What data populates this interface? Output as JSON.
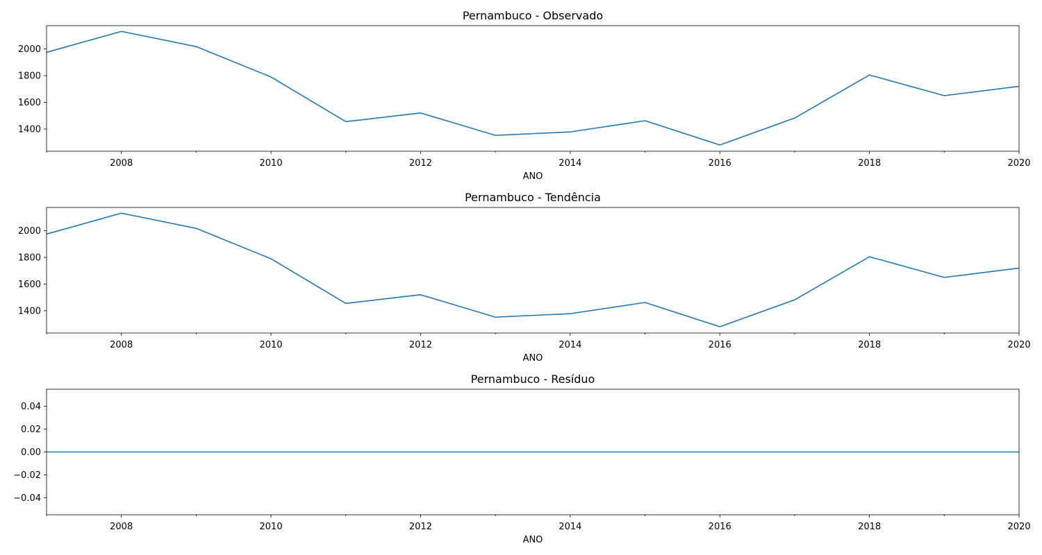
{
  "chart_data": [
    {
      "type": "line",
      "title": "Pernambuco - Observado",
      "xlabel": "ANO",
      "ylabel": "",
      "x": [
        2007,
        2008,
        2009,
        2010,
        2011,
        2012,
        2013,
        2014,
        2015,
        2016,
        2017,
        2018,
        2019,
        2020
      ],
      "series": [
        {
          "values": [
            1975,
            2132,
            2018,
            1790,
            1455,
            1520,
            1352,
            1378,
            1462,
            1280,
            1482,
            1805,
            1650,
            1720
          ]
        }
      ],
      "xlim": [
        2007,
        2020
      ],
      "ylim": [
        1233,
        2175
      ],
      "xticks": [
        "2008",
        "2010",
        "2012",
        "2014",
        "2016",
        "2018",
        "2020"
      ],
      "yticks": [
        "1400",
        "1600",
        "1800",
        "2000"
      ],
      "grid": false,
      "line_color": "#1f77b4"
    },
    {
      "type": "line",
      "title": "Pernambuco - Tendência",
      "xlabel": "ANO",
      "ylabel": "",
      "x": [
        2007,
        2008,
        2009,
        2010,
        2011,
        2012,
        2013,
        2014,
        2015,
        2016,
        2017,
        2018,
        2019,
        2020
      ],
      "series": [
        {
          "values": [
            1975,
            2132,
            2018,
            1790,
            1455,
            1520,
            1352,
            1378,
            1462,
            1280,
            1482,
            1805,
            1650,
            1720
          ]
        }
      ],
      "xlim": [
        2007,
        2020
      ],
      "ylim": [
        1233,
        2175
      ],
      "xticks": [
        "2008",
        "2010",
        "2012",
        "2014",
        "2016",
        "2018",
        "2020"
      ],
      "yticks": [
        "1400",
        "1600",
        "1800",
        "2000"
      ],
      "grid": false,
      "line_color": "#1f77b4"
    },
    {
      "type": "line",
      "title": "Pernambuco - Resíduo",
      "xlabel": "ANO",
      "ylabel": "",
      "x": [
        2007,
        2008,
        2009,
        2010,
        2011,
        2012,
        2013,
        2014,
        2015,
        2016,
        2017,
        2018,
        2019,
        2020
      ],
      "series": [
        {
          "values": [
            0,
            0,
            0,
            0,
            0,
            0,
            0,
            0,
            0,
            0,
            0,
            0,
            0,
            0
          ]
        }
      ],
      "xlim": [
        2007,
        2020
      ],
      "ylim": [
        -0.055,
        0.055
      ],
      "xticks": [
        "2008",
        "2010",
        "2012",
        "2014",
        "2016",
        "2018",
        "2020"
      ],
      "yticks": [
        "0.04",
        "0.02",
        "0.00",
        "−0.02",
        "−0.04"
      ],
      "grid": false,
      "line_color": "#1f77b4"
    }
  ]
}
